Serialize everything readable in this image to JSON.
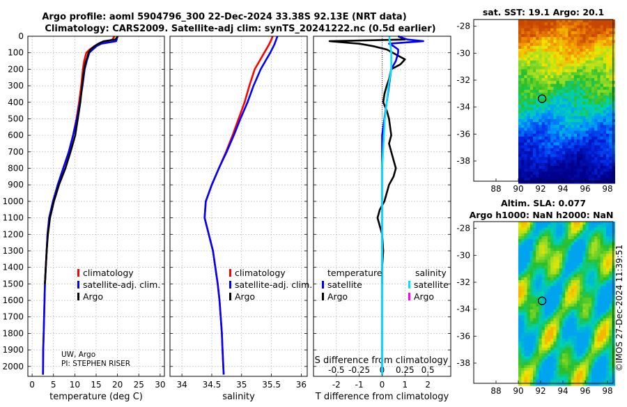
{
  "header": {
    "title_line1": "Argo profile: aoml 5904796_300 22-Dec-2024 33.38S 92.13E (NRT data)",
    "title_line2": "Climatology: CARS2009. Satellite-adj clim: synTS_20241222.nc (0.5d earlier)"
  },
  "credit": {
    "line1": "UW, Argo",
    "line2": "PI: STEPHEN RISER"
  },
  "watermark": "©IMOS 27-Dec-2024 11:39:51",
  "colors": {
    "climatology": "#ff0000",
    "satellite": "#0000ff",
    "argo": "#000000",
    "sat_salinity": "#00e5ff",
    "argo_salinity": "#ff00ff",
    "grid": "#b4b4b4"
  },
  "chart_data": [
    {
      "type": "line",
      "id": "temperature",
      "xlabel": "temperature (deg C)",
      "ylabel": "",
      "xlim": [
        -1,
        31
      ],
      "ylim": [
        2060,
        0
      ],
      "xticks": [
        0,
        5,
        10,
        15,
        20,
        25,
        30
      ],
      "xtick_labels": [
        "0",
        "5",
        "10",
        "15",
        "20",
        "25",
        "30"
      ],
      "yticks": [
        0,
        100,
        200,
        300,
        400,
        500,
        600,
        700,
        800,
        900,
        1000,
        1100,
        1200,
        1300,
        1400,
        1500,
        1600,
        1700,
        1800,
        1900,
        2000
      ],
      "ytick_labels": [
        "0",
        "100",
        "200",
        "300",
        "400",
        "500",
        "600",
        "700",
        "800",
        "900",
        "1000",
        "1100",
        "1200",
        "1300",
        "1400",
        "1500",
        "1600",
        "1700",
        "1800",
        "1900",
        "2000"
      ],
      "grid": true,
      "legend": {
        "placement": "lower-right",
        "entries": [
          "climatology",
          "satellite-adj. clim.",
          "Argo"
        ]
      },
      "series": [
        {
          "name": "climatology",
          "color": "#ff0000",
          "points": [
            [
              19.3,
              0
            ],
            [
              18.8,
              20
            ],
            [
              16.5,
              40
            ],
            [
              14.6,
              60
            ],
            [
              13.5,
              80
            ],
            [
              12.7,
              100
            ],
            [
              12.2,
              150
            ],
            [
              11.9,
              200
            ],
            [
              11.5,
              300
            ],
            [
              11.0,
              400
            ],
            [
              10.4,
              500
            ],
            [
              9.6,
              600
            ],
            [
              8.6,
              700
            ],
            [
              7.3,
              800
            ],
            [
              6.0,
              900
            ],
            [
              4.9,
              1000
            ],
            [
              4.0,
              1100
            ],
            [
              3.6,
              1200
            ],
            [
              3.4,
              1300
            ],
            [
              3.2,
              1400
            ],
            [
              3.0,
              1500
            ],
            [
              2.9,
              1600
            ],
            [
              2.8,
              1700
            ],
            [
              2.7,
              1800
            ],
            [
              2.6,
              1900
            ],
            [
              2.55,
              2050
            ]
          ]
        },
        {
          "name": "satellite-adj. clim.",
          "color": "#0000ff",
          "points": [
            [
              20.0,
              0
            ],
            [
              19.7,
              30
            ],
            [
              16.2,
              45
            ],
            [
              15.1,
              60
            ],
            [
              14.2,
              80
            ],
            [
              13.4,
              100
            ],
            [
              12.8,
              150
            ],
            [
              12.3,
              200
            ],
            [
              11.8,
              300
            ],
            [
              11.2,
              400
            ],
            [
              10.5,
              500
            ],
            [
              9.6,
              600
            ],
            [
              8.6,
              700
            ],
            [
              7.3,
              800
            ],
            [
              6.0,
              900
            ],
            [
              4.9,
              1000
            ],
            [
              4.0,
              1100
            ],
            [
              3.6,
              1200
            ],
            [
              3.4,
              1300
            ],
            [
              3.2,
              1400
            ],
            [
              3.0,
              1500
            ],
            [
              2.9,
              1600
            ],
            [
              2.8,
              1700
            ],
            [
              2.7,
              1800
            ],
            [
              2.6,
              1900
            ],
            [
              2.55,
              2050
            ]
          ]
        },
        {
          "name": "Argo",
          "color": "#000000",
          "points": [
            [
              20.1,
              0
            ],
            [
              19.5,
              20
            ],
            [
              16.8,
              30
            ],
            [
              15.5,
              45
            ],
            [
              14.6,
              60
            ],
            [
              13.7,
              80
            ],
            [
              13.2,
              100
            ],
            [
              12.9,
              130
            ],
            [
              12.5,
              160
            ],
            [
              12.2,
              200
            ],
            [
              11.7,
              300
            ],
            [
              11.3,
              400
            ],
            [
              10.7,
              500
            ],
            [
              10.1,
              600
            ],
            [
              9.0,
              700
            ],
            [
              7.8,
              800
            ],
            [
              6.3,
              900
            ],
            [
              5.1,
              1000
            ],
            [
              4.2,
              1100
            ],
            [
              3.7,
              1200
            ],
            [
              3.4,
              1300
            ],
            [
              3.2,
              1400
            ],
            [
              3.0,
              1500
            ]
          ]
        }
      ]
    },
    {
      "type": "line",
      "id": "salinity",
      "xlabel": "salinity",
      "ylabel": "",
      "xlim": [
        33.8,
        36.1
      ],
      "ylim": [
        2060,
        0
      ],
      "xticks": [
        34,
        34.5,
        35,
        35.5,
        36
      ],
      "xtick_labels": [
        "34",
        "34.5",
        "35",
        "35.5",
        "36"
      ],
      "grid": true,
      "legend": {
        "placement": "lower-right",
        "entries": [
          "climatology",
          "satellite-adj. clim.",
          "Argo"
        ]
      },
      "series": [
        {
          "name": "climatology",
          "color": "#ff0000",
          "points": [
            [
              35.52,
              0
            ],
            [
              35.5,
              20
            ],
            [
              35.46,
              50
            ],
            [
              35.38,
              100
            ],
            [
              35.3,
              150
            ],
            [
              35.22,
              200
            ],
            [
              35.13,
              300
            ],
            [
              35.05,
              400
            ],
            [
              34.95,
              500
            ],
            [
              34.85,
              600
            ],
            [
              34.74,
              700
            ],
            [
              34.62,
              800
            ],
            [
              34.5,
              900
            ],
            [
              34.4,
              1000
            ],
            [
              34.38,
              1100
            ],
            [
              34.45,
              1200
            ],
            [
              34.52,
              1300
            ],
            [
              34.56,
              1400
            ],
            [
              34.6,
              1500
            ],
            [
              34.63,
              1600
            ],
            [
              34.65,
              1700
            ],
            [
              34.67,
              1800
            ],
            [
              34.68,
              1900
            ],
            [
              34.7,
              2050
            ]
          ]
        },
        {
          "name": "satellite-adj. clim.",
          "color": "#0000ff",
          "points": [
            [
              35.6,
              0
            ],
            [
              35.58,
              20
            ],
            [
              35.55,
              50
            ],
            [
              35.48,
              100
            ],
            [
              35.4,
              150
            ],
            [
              35.32,
              200
            ],
            [
              35.2,
              300
            ],
            [
              35.1,
              400
            ],
            [
              34.98,
              500
            ],
            [
              34.87,
              600
            ],
            [
              34.75,
              700
            ],
            [
              34.62,
              800
            ],
            [
              34.5,
              900
            ],
            [
              34.4,
              1000
            ],
            [
              34.38,
              1100
            ],
            [
              34.45,
              1200
            ],
            [
              34.52,
              1300
            ],
            [
              34.56,
              1400
            ],
            [
              34.6,
              1500
            ],
            [
              34.63,
              1600
            ],
            [
              34.65,
              1700
            ],
            [
              34.67,
              1800
            ],
            [
              34.68,
              1900
            ],
            [
              34.7,
              2050
            ]
          ]
        }
      ]
    },
    {
      "type": "line",
      "id": "differences",
      "xlabel": "T difference from climatology",
      "x2label": "S difference from climatology",
      "ylabel": "",
      "xlim": [
        -3,
        3
      ],
      "ylim": [
        2060,
        0
      ],
      "xticks": [
        -2,
        -1,
        0,
        1,
        2
      ],
      "xtick_labels": [
        "-2",
        "-1",
        "0",
        "1",
        "2"
      ],
      "x2ticks": [
        -0.5,
        -0.25,
        0,
        0.25,
        0.5
      ],
      "x2tick_labels": [
        "-0.5",
        "-0.25",
        "0",
        "0.25",
        "0.5"
      ],
      "x2lim": [
        -0.75,
        0.75
      ],
      "grid": true,
      "legend": {
        "placement": "lower",
        "temperature_header": "temperature",
        "salinity_header": "salinity",
        "entries": [
          "satellite",
          "Argo",
          "satellite",
          "Argo"
        ]
      },
      "series": [
        {
          "name": "T Argo - clim",
          "color": "#000000",
          "points": [
            [
              0.7,
              0
            ],
            [
              1.0,
              20
            ],
            [
              -2.3,
              30
            ],
            [
              -1.0,
              45
            ],
            [
              -0.4,
              60
            ],
            [
              0.2,
              80
            ],
            [
              0.6,
              110
            ],
            [
              1.0,
              140
            ],
            [
              0.8,
              170
            ],
            [
              0.4,
              200
            ],
            [
              0.3,
              260
            ],
            [
              0.2,
              300
            ],
            [
              0.1,
              350
            ],
            [
              0.05,
              400
            ],
            [
              0.2,
              450
            ],
            [
              0.3,
              500
            ],
            [
              0.35,
              550
            ],
            [
              0.4,
              600
            ],
            [
              0.3,
              650
            ],
            [
              0.4,
              700
            ],
            [
              0.5,
              750
            ],
            [
              0.6,
              800
            ],
            [
              0.5,
              850
            ],
            [
              0.3,
              900
            ],
            [
              0.2,
              950
            ],
            [
              0.1,
              1000
            ],
            [
              -0.1,
              1050
            ],
            [
              -0.2,
              1100
            ],
            [
              -0.1,
              1150
            ],
            [
              0.0,
              1200
            ],
            [
              0.05,
              1300
            ],
            [
              0.0,
              1400
            ],
            [
              0.0,
              1500
            ]
          ]
        },
        {
          "name": "T sat - clim",
          "color": "#0000ff",
          "points": [
            [
              0.7,
              0
            ],
            [
              1.1,
              20
            ],
            [
              1.8,
              30
            ],
            [
              0.3,
              45
            ],
            [
              0.5,
              60
            ],
            [
              0.7,
              80
            ],
            [
              0.7,
              100
            ],
            [
              0.6,
              150
            ],
            [
              0.4,
              200
            ],
            [
              0.3,
              300
            ],
            [
              0.2,
              400
            ],
            [
              0.1,
              500
            ],
            [
              0.0,
              600
            ],
            [
              0.0,
              700
            ],
            [
              0.0,
              800
            ],
            [
              0.0,
              900
            ],
            [
              0.0,
              1000
            ],
            [
              0.0,
              1100
            ],
            [
              0.0,
              1200
            ],
            [
              0.0,
              1300
            ],
            [
              0.0,
              1400
            ],
            [
              0.0,
              1500
            ],
            [
              0.0,
              1600
            ],
            [
              0.0,
              1700
            ],
            [
              0.0,
              1800
            ],
            [
              0.0,
              1900
            ],
            [
              0.0,
              2050
            ]
          ]
        },
        {
          "name": "S sat - clim",
          "color": "#00e5ff",
          "points": [
            [
              0.08,
              0
            ],
            [
              0.08,
              20
            ],
            [
              0.09,
              50
            ],
            [
              0.1,
              100
            ],
            [
              0.1,
              150
            ],
            [
              0.1,
              200
            ],
            [
              0.07,
              300
            ],
            [
              0.05,
              400
            ],
            [
              0.03,
              500
            ],
            [
              0.02,
              600
            ],
            [
              0.01,
              700
            ],
            [
              0.0,
              800
            ],
            [
              0.0,
              900
            ],
            [
              0.0,
              1000
            ],
            [
              0.0,
              1100
            ],
            [
              0.0,
              1200
            ],
            [
              0.0,
              1300
            ],
            [
              0.0,
              1400
            ],
            [
              0.0,
              1500
            ],
            [
              0.0,
              1600
            ],
            [
              0.0,
              1700
            ],
            [
              0.0,
              1800
            ],
            [
              0.0,
              1900
            ],
            [
              0.0,
              2050
            ]
          ]
        }
      ]
    },
    {
      "type": "heatmap",
      "id": "sst-map",
      "title": "sat. SST: 19.1 Argo: 20.1",
      "xlim": [
        86,
        98.5
      ],
      "ylim": [
        -39.5,
        -27.5
      ],
      "xticks": [
        88,
        90,
        92,
        94,
        96,
        98
      ],
      "xtick_labels": [
        "88",
        "90",
        "92",
        "94",
        "96",
        "98"
      ],
      "yticks": [
        -28,
        -30,
        -32,
        -34,
        -36,
        -38
      ],
      "ytick_labels": [
        "-28",
        "-30",
        "-32",
        "-34",
        "-36",
        "-38"
      ],
      "data_extent_lon": [
        90,
        98.5
      ],
      "marker": {
        "lon": 92.13,
        "lat": -33.38
      }
    },
    {
      "type": "heatmap",
      "id": "sla-map",
      "title_line1": "Altim. SLA: 0.077",
      "title_line2": "Argo h1000: NaN h2000: NaN",
      "xlim": [
        86,
        98.5
      ],
      "ylim": [
        -39.5,
        -27.5
      ],
      "xticks": [
        88,
        90,
        92,
        94,
        96,
        98
      ],
      "xtick_labels": [
        "88",
        "90",
        "92",
        "94",
        "96",
        "98"
      ],
      "yticks": [
        -28,
        -30,
        -32,
        -34,
        -36,
        -38
      ],
      "ytick_labels": [
        "-28",
        "-30",
        "-32",
        "-34",
        "-36",
        "-38"
      ],
      "data_extent_lon": [
        90,
        98.5
      ],
      "marker": {
        "lon": 92.13,
        "lat": -33.38
      }
    }
  ]
}
